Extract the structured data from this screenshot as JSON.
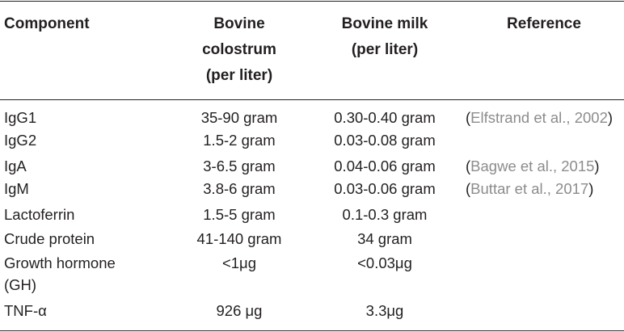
{
  "table": {
    "headers": {
      "component": "Component",
      "colostrum_line1": "Bovine",
      "colostrum_line2": "colostrum",
      "colostrum_line3": "(per liter)",
      "milk_line1": "Bovine milk",
      "milk_line2": "(per liter)",
      "reference": "Reference"
    },
    "rows": [
      {
        "component": "IgG1",
        "colostrum": "35-90 gram",
        "milk": "0.30-0.40 gram"
      },
      {
        "component": "IgG2",
        "colostrum": "1.5-2 gram",
        "milk": "0.03-0.08 gram"
      },
      {
        "component": "IgA",
        "colostrum": "3-6.5 gram",
        "milk": "0.04-0.06 gram"
      },
      {
        "component": "IgM",
        "colostrum": "3.8-6 gram",
        "milk": "0.03-0.06 gram"
      },
      {
        "component": "Lactoferrin",
        "colostrum": "1.5-5 gram",
        "milk": "0.1-0.3 gram"
      },
      {
        "component": "Crude protein",
        "colostrum": "41-140 gram",
        "milk": "34 gram"
      },
      {
        "component": "Growth hormone",
        "component_line2": "(GH)",
        "colostrum": "<1μg",
        "milk": "<0.03μg"
      },
      {
        "component": "TNF-α",
        "colostrum": "926 μg",
        "milk": "3.3μg"
      }
    ],
    "references": [
      {
        "open": "(",
        "text": "Elfstrand et al., 2002",
        "close": ")"
      },
      {
        "open": "(",
        "text": "Bagwe et al., 2015",
        "close": ")"
      },
      {
        "open": "(",
        "text": "Buttar et al., 2017",
        "close": ")"
      }
    ]
  }
}
